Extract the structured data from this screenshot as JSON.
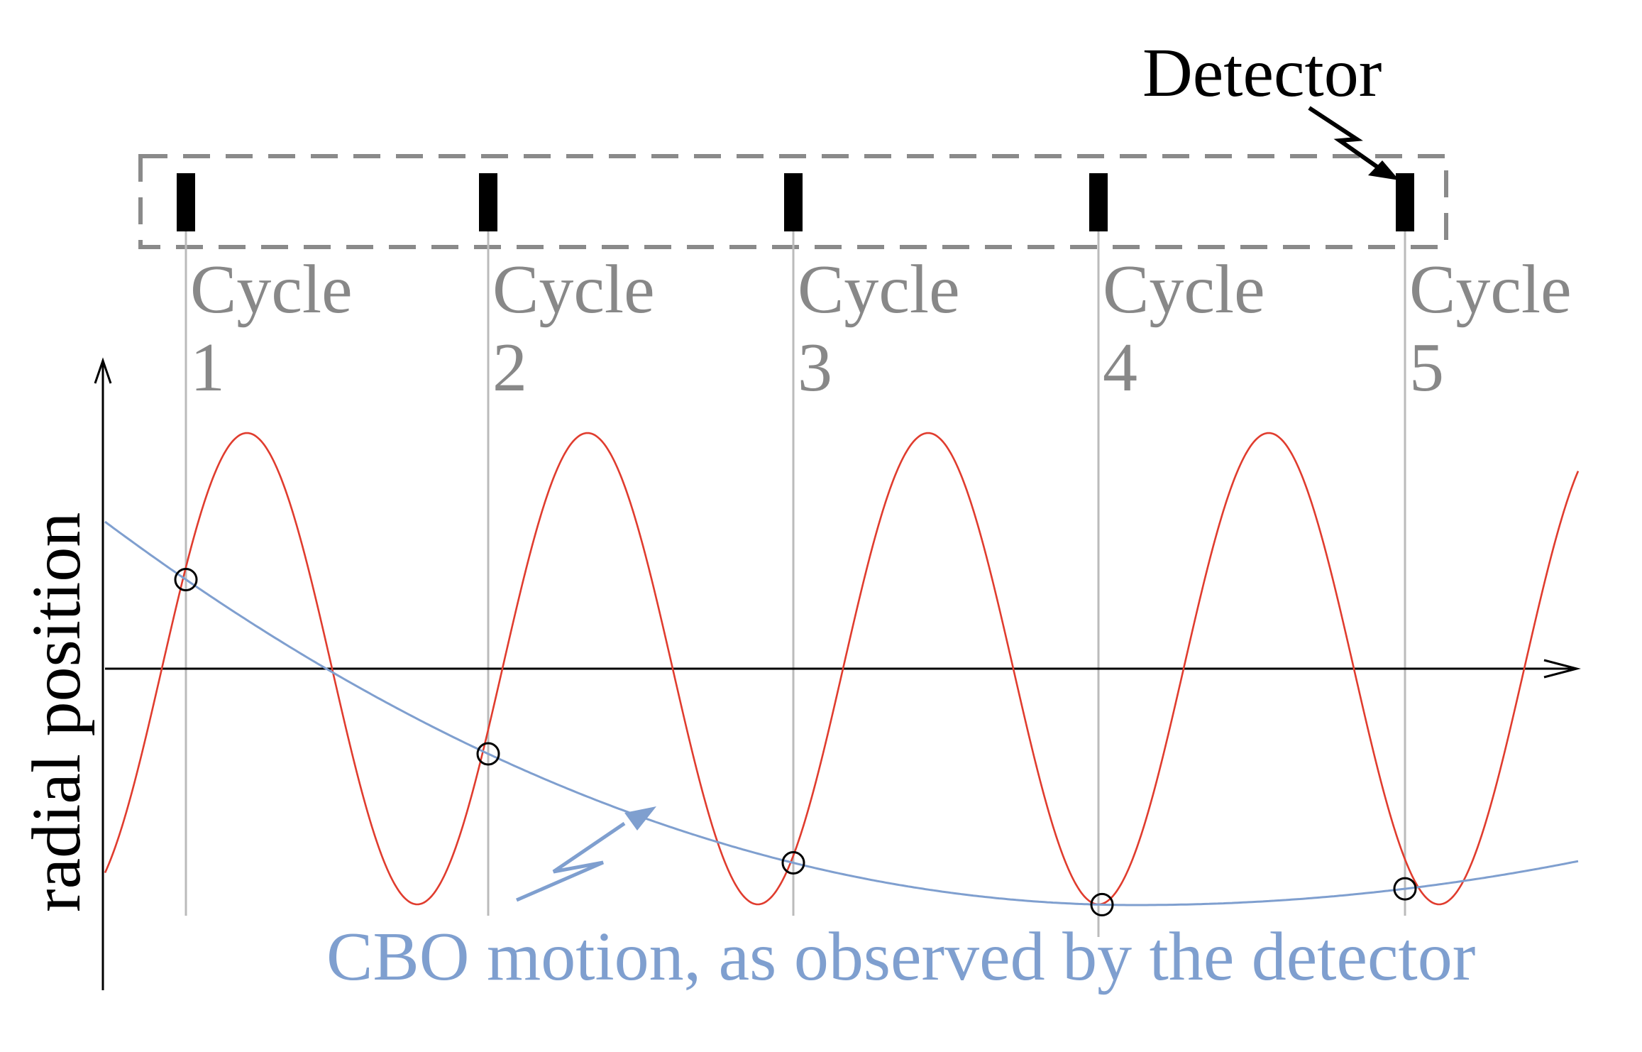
{
  "figure": {
    "detector_label": "Detector",
    "y_axis_label": "radial position",
    "cbo_label": "CBO motion, as observed by the detector"
  },
  "cycles": [
    {
      "word": "Cycle",
      "number": "1"
    },
    {
      "word": "Cycle",
      "number": "2"
    },
    {
      "word": "Cycle",
      "number": "3"
    },
    {
      "word": "Cycle",
      "number": "4"
    },
    {
      "word": "Cycle",
      "number": "5"
    }
  ],
  "colors": {
    "fast_oscillation": "#e03c2e",
    "cbo_curve": "#7f9fcf",
    "cycle_text": "#888888",
    "cycle_lines": "#bbbbbb",
    "detector_box": "#8a8a8a",
    "detector_marks": "#000000",
    "axes": "#000000",
    "sample_markers": "#000000"
  }
}
